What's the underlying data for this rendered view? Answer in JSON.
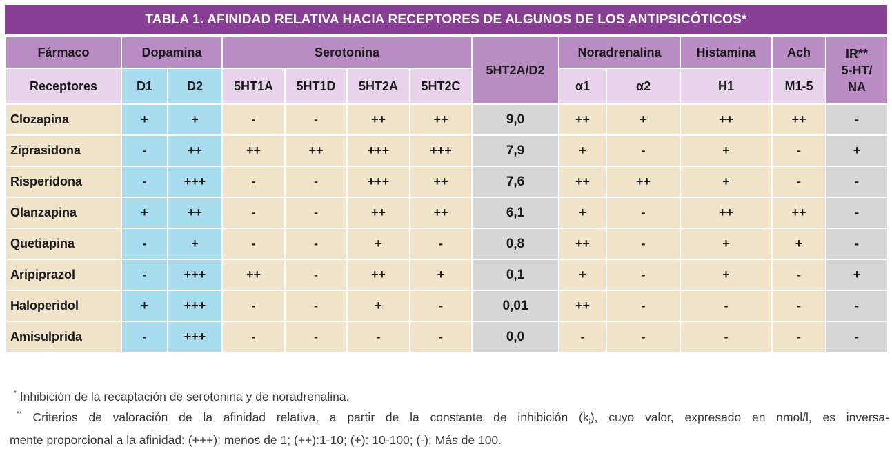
{
  "title": "TABLA 1. AFINIDAD RELATIVA HACIA RECEPTORES DE ALGUNOS DE LOS ANTIPSICÓTICOS*",
  "header": {
    "farmaco": "Fármaco",
    "receptores": "Receptores",
    "dopamina": "Dopamina",
    "serotonina": "Serotonina",
    "ratio": "5HT2A/D2",
    "noradrenalina": "Noradrenalina",
    "histamina": "Histamina",
    "ach": "Ach",
    "ir_line1": "IR**",
    "ir_line2": "5-HT/",
    "ir_line3": "NA",
    "d1": "D1",
    "d2": "D2",
    "ht1a": "5HT1A",
    "ht1d": "5HT1D",
    "ht2a": "5HT2A",
    "ht2c": "5HT2C",
    "a1": "α1",
    "a2": "α2",
    "h1": "H1",
    "m15": "M1-5"
  },
  "rows": [
    {
      "drug": "Clozapina",
      "d1": "+",
      "d2": "+",
      "ht1a": "-",
      "ht1d": "-",
      "ht2a": "++",
      "ht2c": "++",
      "ratio": "9,0",
      "a1": "++",
      "a2": "+",
      "h1": "++",
      "m15": "++",
      "ir": "-"
    },
    {
      "drug": "Ziprasidona",
      "d1": "-",
      "d2": "++",
      "ht1a": "++",
      "ht1d": "++",
      "ht2a": "+++",
      "ht2c": "+++",
      "ratio": "7,9",
      "a1": "+",
      "a2": "-",
      "h1": "+",
      "m15": "-",
      "ir": "+"
    },
    {
      "drug": "Risperidona",
      "d1": "-",
      "d2": "+++",
      "ht1a": "-",
      "ht1d": "-",
      "ht2a": "+++",
      "ht2c": "++",
      "ratio": "7,6",
      "a1": "++",
      "a2": "++",
      "h1": "+",
      "m15": "-",
      "ir": "-"
    },
    {
      "drug": "Olanzapina",
      "d1": "+",
      "d2": "++",
      "ht1a": "-",
      "ht1d": "-",
      "ht2a": "++",
      "ht2c": "++",
      "ratio": "6,1",
      "a1": "+",
      "a2": "-",
      "h1": "++",
      "m15": "++",
      "ir": "-"
    },
    {
      "drug": "Quetiapina",
      "d1": "-",
      "d2": "+",
      "ht1a": "-",
      "ht1d": "-",
      "ht2a": "+",
      "ht2c": "-",
      "ratio": "0,8",
      "a1": "++",
      "a2": "-",
      "h1": "+",
      "m15": "+",
      "ir": "-"
    },
    {
      "drug": "Aripiprazol",
      "d1": "-",
      "d2": "+++",
      "ht1a": "++",
      "ht1d": "-",
      "ht2a": "++",
      "ht2c": "+",
      "ratio": "0,1",
      "a1": "+",
      "a2": "-",
      "h1": "+",
      "m15": "-",
      "ir": "+"
    },
    {
      "drug": "Haloperidol",
      "d1": "+",
      "d2": "+++",
      "ht1a": "-",
      "ht1d": "-",
      "ht2a": "+",
      "ht2c": "-",
      "ratio": "0,01",
      "a1": "++",
      "a2": "-",
      "h1": "-",
      "m15": "-",
      "ir": "-"
    },
    {
      "drug": "Amisulprida",
      "d1": "-",
      "d2": "+++",
      "ht1a": "-",
      "ht1d": "-",
      "ht2a": "-",
      "ht2c": "-",
      "ratio": "0,0",
      "a1": "-",
      "a2": "-",
      "h1": "-",
      "m15": "-",
      "ir": "-"
    }
  ],
  "footnotes": {
    "note1_mark": "*",
    "note1_text": "Inhibición de la recaptación de serotonina y de noradrenalina.",
    "note2_mark": "**",
    "note2_text_a": "Criterios de valoración de la afinidad relativa, a partir de la constante de inhibición (k",
    "note2_sub": "i",
    "note2_text_b": "), cuyo valor, expresado en nmol/l, es inversa-",
    "note2_line2": "mente proporcional a la afinidad: (+++): menos de 1; (++):1-10; (+): 10-100; (-): Más de 100."
  }
}
